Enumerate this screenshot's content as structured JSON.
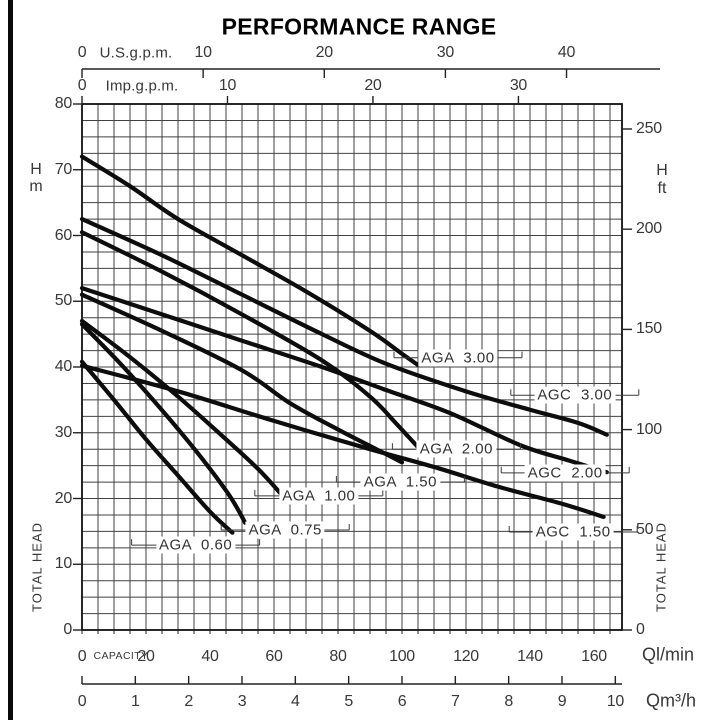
{
  "title": "PERFORMANCE RANGE",
  "chart_data": {
    "type": "line",
    "title": "PERFORMANCE RANGE",
    "x_axis": {
      "primary_unit": "Ql/min",
      "primary_ticks": [
        0,
        20,
        40,
        60,
        80,
        100,
        120,
        140,
        160
      ],
      "primary_label": "CAPACITY",
      "secondary_unit": "Qm³/h",
      "secondary_ticks": [
        0,
        1,
        2,
        3,
        4,
        5,
        6,
        7,
        8,
        9,
        10
      ],
      "top_us_unit": "U.S.g.p.m.",
      "top_us_ticks": [
        0,
        10,
        20,
        30,
        40
      ],
      "top_imp_unit": "Imp.g.p.m.",
      "top_imp_ticks": [
        0,
        10,
        20,
        30
      ],
      "range_lmin": [
        0,
        168.5
      ]
    },
    "y_axis": {
      "left_unit_lines": [
        "H",
        "m"
      ],
      "left_ticks_m": [
        80,
        70,
        60,
        50,
        40,
        30,
        20,
        10,
        0
      ],
      "left_title": "TOTAL HEAD",
      "right_unit_lines": [
        "H",
        "ft"
      ],
      "right_ticks_ft": [
        250,
        200,
        150,
        100,
        50,
        0
      ],
      "right_title": "TOTAL HEAD",
      "range_m": [
        0,
        80
      ]
    },
    "grid": {
      "x_step_lmin": 5,
      "y_step_m": 2.5,
      "on": true
    },
    "series": [
      {
        "name": "AGA 3.00",
        "label_anchor_q_h": [
          117.5,
          41.4
        ],
        "points_q_h": [
          [
            0,
            72
          ],
          [
            15,
            67.5
          ],
          [
            30,
            62.5
          ],
          [
            50,
            57
          ],
          [
            70,
            51.5
          ],
          [
            90,
            45.5
          ],
          [
            100,
            42
          ],
          [
            105,
            40.3
          ]
        ]
      },
      {
        "name": "AGC 3.00",
        "label_anchor_q_h": [
          154,
          35.7
        ],
        "points_q_h": [
          [
            0,
            62.5
          ],
          [
            25,
            57
          ],
          [
            50,
            51
          ],
          [
            75,
            45
          ],
          [
            95,
            40.5
          ],
          [
            120,
            36.3
          ],
          [
            140,
            33.5
          ],
          [
            155,
            31.5
          ],
          [
            164,
            29.7
          ]
        ]
      },
      {
        "name": "AGA 2.00",
        "label_anchor_q_h": [
          117,
          27.5
        ],
        "points_q_h": [
          [
            0,
            60.5
          ],
          [
            25,
            54.5
          ],
          [
            50,
            48
          ],
          [
            75,
            41
          ],
          [
            90,
            35.5
          ],
          [
            98,
            31.5
          ],
          [
            105,
            27.8
          ]
        ]
      },
      {
        "name": "AGC 2.00",
        "label_anchor_q_h": [
          151,
          23.9
        ],
        "points_q_h": [
          [
            0,
            52
          ],
          [
            25,
            48
          ],
          [
            50,
            44
          ],
          [
            75,
            40
          ],
          [
            95,
            36.5
          ],
          [
            115,
            33
          ],
          [
            137,
            28.1
          ],
          [
            152,
            25.8
          ],
          [
            164,
            24
          ]
        ]
      },
      {
        "name": "AGA 1.50",
        "label_anchor_q_h": [
          99.5,
          22.5
        ],
        "points_q_h": [
          [
            0,
            51
          ],
          [
            25,
            45.5
          ],
          [
            50,
            39.5
          ],
          [
            65,
            34.5
          ],
          [
            80,
            30.5
          ],
          [
            92,
            27.5
          ],
          [
            100,
            25.5
          ]
        ]
      },
      {
        "name": "AGC 1.50",
        "label_anchor_q_h": [
          153.5,
          14.9
        ],
        "points_q_h": [
          [
            0,
            40.2
          ],
          [
            30,
            36.3
          ],
          [
            60,
            31.8
          ],
          [
            90,
            27.5
          ],
          [
            110,
            24.8
          ],
          [
            130,
            21.8
          ],
          [
            150,
            19.2
          ],
          [
            163,
            17.2
          ]
        ]
      },
      {
        "name": "AGA 1.00",
        "label_anchor_q_h": [
          74,
          20.4
        ],
        "points_q_h": [
          [
            0,
            47
          ],
          [
            15,
            41.5
          ],
          [
            30,
            35.5
          ],
          [
            45,
            29
          ],
          [
            55,
            24.5
          ],
          [
            62,
            20.8
          ]
        ]
      },
      {
        "name": "AGA 0.75",
        "label_anchor_q_h": [
          63.5,
          15.2
        ],
        "points_q_h": [
          [
            0,
            46.5
          ],
          [
            12,
            40.5
          ],
          [
            24,
            34
          ],
          [
            36,
            27
          ],
          [
            46,
            20.5
          ],
          [
            51,
            16.3
          ]
        ]
      },
      {
        "name": "AGA 0.60",
        "label_anchor_q_h": [
          35.5,
          12.9
        ],
        "points_q_h": [
          [
            0,
            40.8
          ],
          [
            10,
            35
          ],
          [
            20,
            29
          ],
          [
            30,
            23.5
          ],
          [
            40,
            18
          ],
          [
            47,
            14.8
          ]
        ]
      }
    ],
    "colors": {
      "curve": "#0d0d0d",
      "grid": "#424242",
      "frame": "#111111",
      "text": "#383838"
    }
  },
  "labels": {
    "us": "U.S.g.p.m.",
    "imp": "Imp.g.p.m.",
    "capacity": "CAPACITY",
    "ql_min": "Ql/min",
    "qm3_h": "Qm³/h",
    "h_left_1": "H",
    "h_left_2": "m",
    "h_right_1": "H",
    "h_right_2": "ft",
    "total_head_left": "TOTAL HEAD",
    "total_head_right": "TOTAL HEAD"
  }
}
